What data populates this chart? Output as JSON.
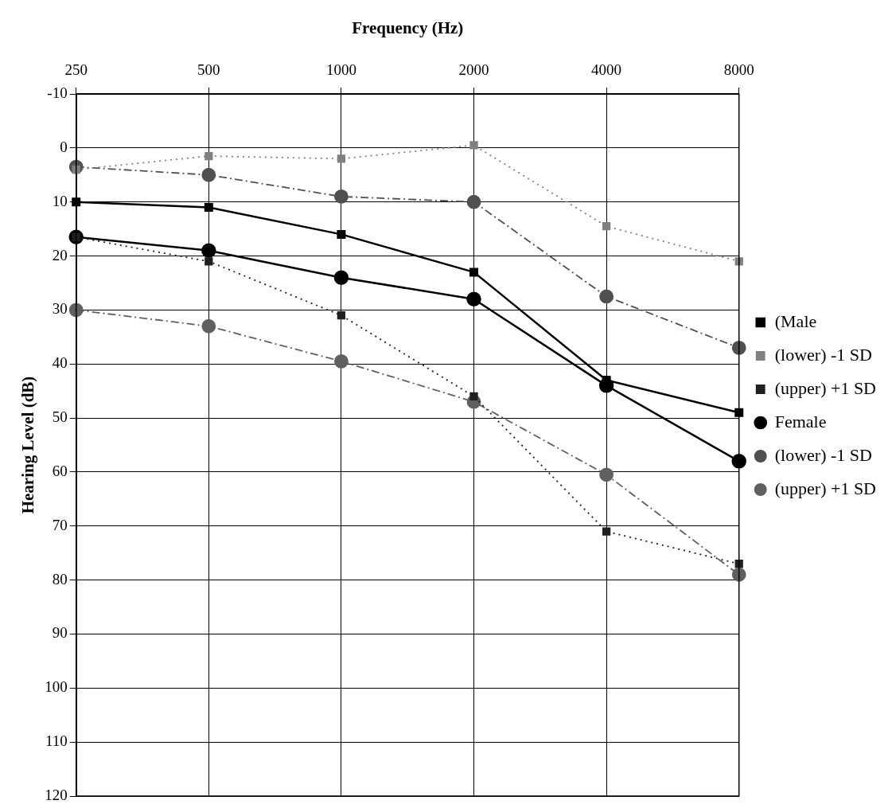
{
  "chart_data": {
    "type": "line",
    "xlabel": "Frequency (Hz)",
    "ylabel": "Hearing Level (dB)",
    "categories": [
      "250",
      "500",
      "1000",
      "2000",
      "4000",
      "8000"
    ],
    "ylim": [
      120,
      -10
    ],
    "yticks": [
      -10,
      0,
      10,
      20,
      30,
      40,
      50,
      60,
      70,
      80,
      90,
      100,
      110,
      120
    ],
    "grid": true,
    "legend": "right",
    "series": [
      {
        "name": "(Male",
        "color": "#000000",
        "marker": "square",
        "line_style": "solid",
        "values": [
          10,
          11,
          16,
          23,
          43,
          49
        ]
      },
      {
        "name": "(lower) -1 SD",
        "color": "#808080",
        "marker": "square",
        "line_style": "dotted",
        "values": [
          4,
          1.5,
          2,
          -0.5,
          14.5,
          21
        ]
      },
      {
        "name": "(upper) +1 SD",
        "color": "#202020",
        "marker": "square",
        "line_style": "dotted",
        "values": [
          16.5,
          21,
          31,
          46,
          71,
          77
        ]
      },
      {
        "name": "Female",
        "color": "#000000",
        "marker": "circle",
        "line_style": "solid",
        "values": [
          16.5,
          19,
          24,
          28,
          44,
          58
        ]
      },
      {
        "name": "(lower) -1 SD",
        "color": "#505050",
        "marker": "circle",
        "line_style": "dashed",
        "values": [
          3.5,
          5,
          9,
          10,
          27.5,
          37
        ]
      },
      {
        "name": "(upper) +1 SD",
        "color": "#606060",
        "marker": "circle",
        "line_style": "dashed",
        "values": [
          30,
          33,
          39.5,
          47,
          60.5,
          79
        ]
      }
    ]
  }
}
